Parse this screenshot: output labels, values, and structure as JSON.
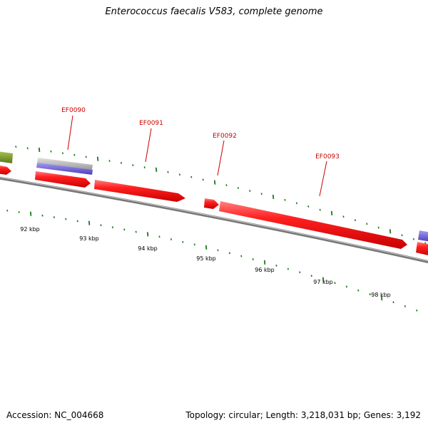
{
  "title": "Enterococcus faecalis V583, complete genome",
  "footer": {
    "accession": "Accession: NC_004668",
    "summary": "Topology: circular; Length: 3,218,031 bp; Genes: 3,192"
  },
  "colors": {
    "cds": "#ee1111",
    "label": "#cc0000",
    "tick": "#1a7a1a",
    "backbone": "#7a7a7a",
    "blue_feature": "#6b5fd8",
    "gray_feature": "#b8b8b8",
    "olive_feature": "#7a9a2a"
  },
  "genes": [
    {
      "name": "EF0090"
    },
    {
      "name": "EF0091"
    },
    {
      "name": "EF0092"
    },
    {
      "name": "EF0093"
    }
  ],
  "scale": {
    "labels": [
      "92 kbp",
      "93 kbp",
      "94 kbp",
      "95 kbp",
      "96 kbp",
      "97 kbp",
      "98 kbp"
    ]
  }
}
